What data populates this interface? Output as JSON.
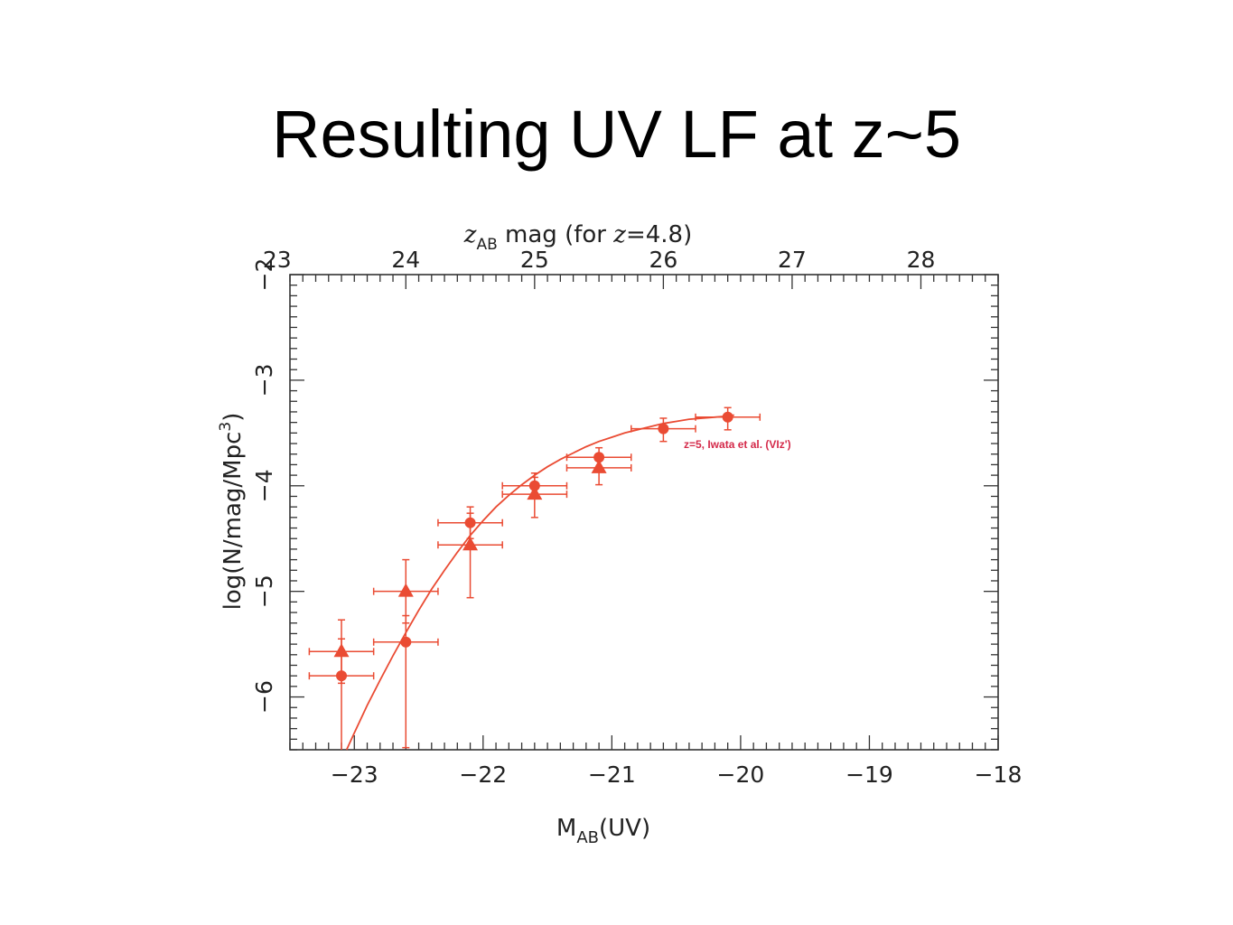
{
  "slide": {
    "title": "Resulting UV LF at z~5"
  },
  "chart_data": {
    "type": "scatter",
    "title": "",
    "xlabel": {
      "main": "M",
      "sub": "AB",
      "tail": "(UV)"
    },
    "ylabel": {
      "main": "log(N/mag/Mpc",
      "sup": "3",
      "tail": ")"
    },
    "top_axis_label": {
      "z": "z",
      "sub": "AB",
      "mid": " mag  (for ",
      "z2": "z",
      "tail": "=4.8)"
    },
    "xlim": [
      -23.5,
      -18
    ],
    "ylim": [
      -6.5,
      -2
    ],
    "top_xlim": [
      23.1,
      28.6
    ],
    "x_ticks": [
      -23,
      -22,
      -21,
      -20,
      -19,
      -18
    ],
    "x_tick_labels": [
      "−23",
      "−22",
      "−21",
      "−20",
      "−19",
      "−18"
    ],
    "y_ticks": [
      -6,
      -5,
      -4,
      -3,
      -2
    ],
    "y_tick_labels": [
      "−6",
      "−5",
      "−4",
      "−3",
      "−2"
    ],
    "top_ticks": [
      23,
      24,
      25,
      26,
      27,
      28
    ],
    "top_tick_labels": [
      "23",
      "24",
      "25",
      "26",
      "27",
      "28"
    ],
    "grid": false,
    "color": "#ea4b33",
    "legend_color": "#d42a4a",
    "legend": "z=5, Iwata et al. (VIz')",
    "legend_position": "center-right",
    "series": [
      {
        "marker": "circle",
        "points": [
          {
            "x": -23.1,
            "y": -5.8,
            "xerr": 0.25,
            "yerr_up": 0.35,
            "yerr_down": 0.75
          },
          {
            "x": -22.6,
            "y": -5.48,
            "xerr": 0.25,
            "yerr_up": 0.25,
            "yerr_down": 1.0
          },
          {
            "x": -22.1,
            "y": -4.35,
            "xerr": 0.25,
            "yerr_up": 0.15,
            "yerr_down": 0.15
          },
          {
            "x": -21.6,
            "y": -4.0,
            "xerr": 0.25,
            "yerr_up": 0.12,
            "yerr_down": 0.12
          },
          {
            "x": -21.1,
            "y": -3.73,
            "xerr": 0.25,
            "yerr_up": 0.09,
            "yerr_down": 0.09
          },
          {
            "x": -20.6,
            "y": -3.46,
            "xerr": 0.25,
            "yerr_up": 0.1,
            "yerr_down": 0.12
          },
          {
            "x": -20.1,
            "y": -3.35,
            "xerr": 0.25,
            "yerr_up": 0.09,
            "yerr_down": 0.12
          }
        ]
      },
      {
        "marker": "triangle",
        "points": [
          {
            "x": -23.1,
            "y": -5.57,
            "xerr": 0.25,
            "yerr_up": 0.3,
            "yerr_down": 0.3
          },
          {
            "x": -22.6,
            "y": -5.0,
            "xerr": 0.25,
            "yerr_up": 0.3,
            "yerr_down": 0.3
          },
          {
            "x": -22.1,
            "y": -4.56,
            "xerr": 0.25,
            "yerr_up": 0.3,
            "yerr_down": 0.5
          },
          {
            "x": -21.6,
            "y": -4.08,
            "xerr": 0.25,
            "yerr_up": 0.16,
            "yerr_down": 0.22
          },
          {
            "x": -21.1,
            "y": -3.83,
            "xerr": 0.25,
            "yerr_up": 0.1,
            "yerr_down": 0.16
          }
        ]
      }
    ],
    "fit_curve": {
      "x": [
        -23.06,
        -23.0,
        -22.9,
        -22.8,
        -22.7,
        -22.6,
        -22.5,
        -22.4,
        -22.3,
        -22.2,
        -22.1,
        -22.0,
        -21.9,
        -21.8,
        -21.7,
        -21.6,
        -21.5,
        -21.4,
        -21.3,
        -21.2,
        -21.1,
        -21.0,
        -20.9,
        -20.8,
        -20.7,
        -20.6,
        -20.5,
        -20.4,
        -20.3,
        -20.2,
        -20.1,
        -20.05
      ],
      "y": [
        -6.5,
        -6.34,
        -6.08,
        -5.84,
        -5.61,
        -5.39,
        -5.18,
        -4.98,
        -4.8,
        -4.63,
        -4.47,
        -4.33,
        -4.2,
        -4.09,
        -3.99,
        -3.9,
        -3.82,
        -3.75,
        -3.69,
        -3.63,
        -3.58,
        -3.54,
        -3.5,
        -3.47,
        -3.44,
        -3.41,
        -3.39,
        -3.37,
        -3.36,
        -3.35,
        -3.34,
        -3.33
      ]
    }
  }
}
